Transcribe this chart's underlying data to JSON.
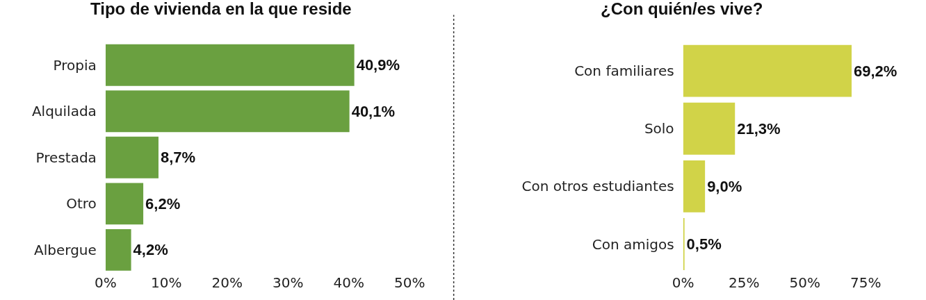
{
  "chart_data": [
    {
      "type": "bar",
      "orientation": "horizontal",
      "title": "Tipo de vivienda en la que reside",
      "categories": [
        "Propia",
        "Alquilada",
        "Prestada",
        "Otro",
        "Albergue"
      ],
      "values": [
        40.9,
        40.1,
        8.7,
        6.2,
        4.2
      ],
      "value_labels": [
        "40,9%",
        "40,1%",
        "8,7%",
        "6,2%",
        "4,2%"
      ],
      "color": "#6aa040",
      "xlim": [
        0,
        50
      ],
      "xticks": [
        {
          "value": 0,
          "label": "0%"
        },
        {
          "value": 10,
          "label": "10%"
        },
        {
          "value": 20,
          "label": "20%"
        },
        {
          "value": 30,
          "label": "30%"
        },
        {
          "value": 40,
          "label": "40%"
        },
        {
          "value": 50,
          "label": "50%"
        }
      ]
    },
    {
      "type": "bar",
      "orientation": "horizontal",
      "title": "¿Con quién/es vive?",
      "categories": [
        "Con familiares",
        "Solo",
        "Con otros estudiantes",
        "Con amigos"
      ],
      "values": [
        69.2,
        21.3,
        9.0,
        0.5
      ],
      "value_labels": [
        "69,2%",
        "21,3%",
        "9,0%",
        "0,5%"
      ],
      "color": "#d1d348",
      "xlim": [
        0,
        75
      ],
      "xticks": [
        {
          "value": 0,
          "label": "0%"
        },
        {
          "value": 25,
          "label": "25%"
        },
        {
          "value": 50,
          "label": "50%"
        },
        {
          "value": 75,
          "label": "75%"
        }
      ]
    }
  ]
}
